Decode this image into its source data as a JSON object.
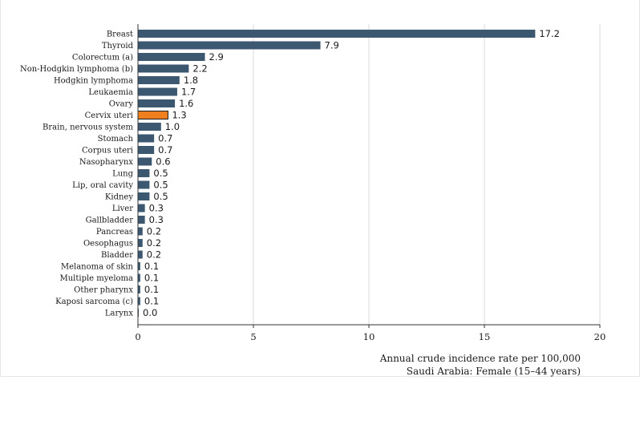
{
  "chart_data": {
    "type": "bar",
    "orientation": "horizontal",
    "categories": [
      "Breast",
      "Thyroid",
      "Colorectum (a)",
      "Non-Hodgkin lymphoma (b)",
      "Hodgkin lymphoma",
      "Leukaemia",
      "Ovary",
      "Cervix uteri",
      "Brain, nervous system",
      "Stomach",
      "Corpus uteri",
      "Nasopharynx",
      "Lung",
      "Lip, oral cavity",
      "Kidney",
      "Liver",
      "Gallbladder",
      "Pancreas",
      "Oesophagus",
      "Bladder",
      "Melanoma of skin",
      "Multiple myeloma",
      "Other pharynx",
      "Kaposi sarcoma (c)",
      "Larynx"
    ],
    "values": [
      17.2,
      7.9,
      2.9,
      2.2,
      1.8,
      1.7,
      1.6,
      1.3,
      1.0,
      0.7,
      0.7,
      0.6,
      0.5,
      0.5,
      0.5,
      0.3,
      0.3,
      0.2,
      0.2,
      0.2,
      0.1,
      0.1,
      0.1,
      0.1,
      0.0
    ],
    "value_labels": [
      "17.2",
      "7.9",
      "2.9",
      "2.2",
      "1.8",
      "1.7",
      "1.6",
      "1.3",
      "1.0",
      "0.7",
      "0.7",
      "0.6",
      "0.5",
      "0.5",
      "0.5",
      "0.3",
      "0.3",
      "0.2",
      "0.2",
      "0.2",
      "0.1",
      "0.1",
      "0.1",
      "0.1",
      "0.0"
    ],
    "highlight": "Cervix uteri",
    "xticks": [
      0,
      5,
      10,
      15,
      20
    ],
    "xlim": [
      0,
      20
    ],
    "grid": "vertical",
    "xlabel_line1": "Annual crude incidence rate per 100,000",
    "xlabel_line2": "Saudi Arabia: Female (15–44 years)",
    "colors": {
      "bar": "#3b5870",
      "highlight": "#f07f1e",
      "highlight_edge": "#1a1a1a",
      "grid": "#d9d9d9",
      "axis": "#333333"
    }
  }
}
